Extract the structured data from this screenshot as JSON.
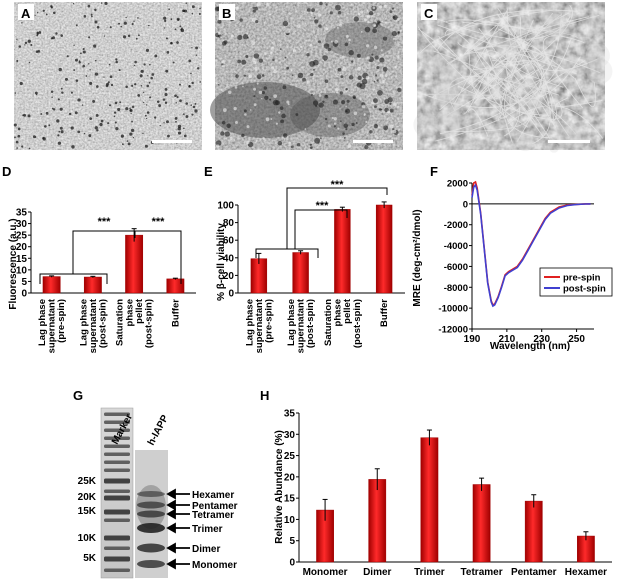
{
  "panels": {
    "A": "A",
    "B": "B",
    "C": "C",
    "D": "D",
    "E": "E",
    "F": "F",
    "G": "G",
    "H": "H"
  },
  "colors": {
    "bar": "#e00000",
    "bar_edge": "#a00000",
    "pre_spin": "#e02020",
    "post_spin": "#4040d0"
  },
  "significance": "***",
  "panel_D": {
    "chart_data": {
      "type": "bar",
      "ylabel": "Fluorescence (a.u.)",
      "ylim": [
        0,
        35
      ],
      "yticks": [
        "0",
        "5",
        "10",
        "15",
        "20",
        "25",
        "30",
        "35"
      ],
      "categories": [
        [
          "Lag phase",
          "supernatant",
          "(pre-spin)"
        ],
        [
          "Lag phase",
          "supernatant",
          "(post-spin)"
        ],
        [
          "Saturation",
          "phase",
          "pellet",
          "(post-spin)"
        ],
        [
          "Buffer"
        ]
      ],
      "values": [
        7.1,
        6.9,
        25.0,
        6.1
      ],
      "errors": [
        0.3,
        0.3,
        2.8,
        0.3
      ]
    }
  },
  "panel_E": {
    "chart_data": {
      "type": "bar",
      "ylabel": "% β-cell viability",
      "ylim": [
        0,
        100
      ],
      "yticks": [
        "0",
        "20",
        "40",
        "60",
        "80",
        "100"
      ],
      "categories": [
        [
          "Lag phase",
          "supernatant",
          "(pre-spin)"
        ],
        [
          "Lag phase",
          "supernatant",
          "(post-spin)"
        ],
        [
          "Saturation",
          "phase",
          "pellet",
          "(post-spin)"
        ],
        [
          "Buffer"
        ]
      ],
      "values": [
        39,
        46,
        95,
        100
      ],
      "errors": [
        6,
        2,
        2.5,
        3.5
      ]
    }
  },
  "panel_F": {
    "chart_data": {
      "type": "line",
      "xlabel": "Wavelength (nm)",
      "ylabel": "MRE (deg-cm²/dmol)",
      "xlim": [
        190,
        260
      ],
      "ylim": [
        -12000,
        2000
      ],
      "xticks": [
        "190",
        "210",
        "230",
        "250"
      ],
      "yticks": [
        "2000",
        "0",
        "-2000",
        "-4000",
        "-6000",
        "-8000",
        "-10000",
        "-12000"
      ],
      "x": [
        190,
        191,
        192,
        193,
        195,
        197,
        199,
        201,
        202,
        203,
        205,
        207,
        209,
        211,
        213,
        216,
        219,
        222,
        225,
        229,
        232,
        235,
        240,
        245,
        250,
        255,
        258
      ],
      "series": [
        {
          "name": "pre-spin",
          "values": [
            800,
            2000,
            2100,
            1500,
            -900,
            -4200,
            -7500,
            -9300,
            -9700,
            -9600,
            -8900,
            -7900,
            -6800,
            -6500,
            -6300,
            -6000,
            -5300,
            -4400,
            -3500,
            -2300,
            -1400,
            -800,
            -300,
            -100,
            -50,
            0,
            0
          ]
        },
        {
          "name": "post-spin",
          "values": [
            600,
            1600,
            1800,
            1300,
            -1000,
            -4300,
            -7600,
            -9400,
            -9800,
            -9700,
            -9000,
            -8000,
            -6900,
            -6600,
            -6400,
            -6100,
            -5400,
            -4500,
            -3600,
            -2400,
            -1500,
            -900,
            -400,
            -150,
            -60,
            -10,
            0
          ]
        }
      ],
      "legend": "bottom-right"
    }
  },
  "panel_G": {
    "lanes": [
      "Marker",
      "h-IAPP"
    ],
    "markers": [
      "25K",
      "20K",
      "15K",
      "10K",
      "5K"
    ],
    "bands": [
      "Hexamer",
      "Pentamer",
      "Tetramer",
      "Trimer",
      "Dimer",
      "Monomer"
    ]
  },
  "panel_H": {
    "chart_data": {
      "type": "bar",
      "ylabel": "Relative Abundance (%)",
      "ylim": [
        0,
        35
      ],
      "yticks": [
        "0",
        "5",
        "10",
        "15",
        "20",
        "25",
        "30",
        "35"
      ],
      "categories": [
        "Monomer",
        "Dimer",
        "Trimer",
        "Tetramer",
        "Pentamer",
        "Hexamer"
      ],
      "values": [
        12.2,
        19.4,
        29.2,
        18.2,
        14.3,
        6.1
      ],
      "errors": [
        2.5,
        2.5,
        1.8,
        1.5,
        1.5,
        1.0
      ]
    }
  }
}
